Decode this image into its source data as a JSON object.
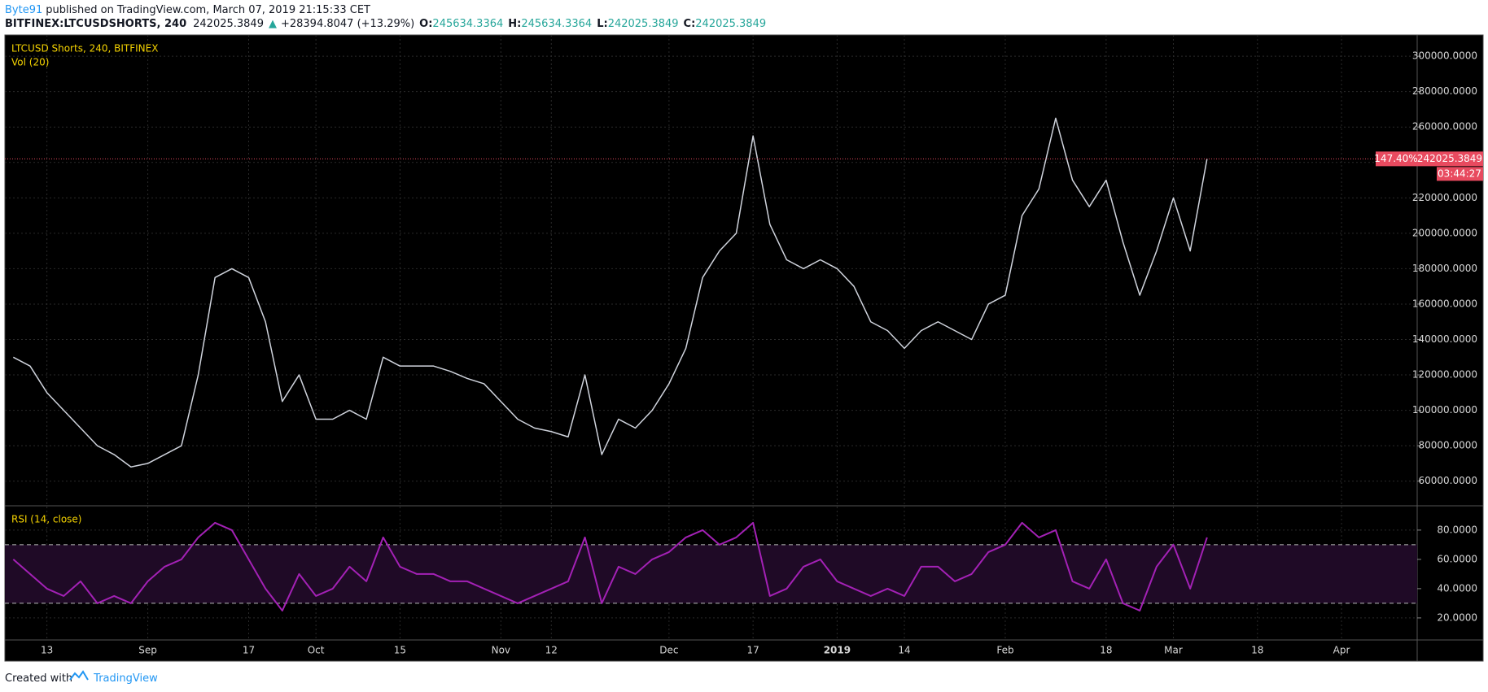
{
  "header": {
    "author": "Byte91",
    "published": "published on TradingView.com, March 07, 2019 21:15:33 CET",
    "symbol": "BITFINEX:LTCUSDSHORTS, 240",
    "last": 242025.3849,
    "arrow": "▲",
    "change": "+28394.8047 (+13.29%)",
    "ohlc": [
      {
        "label": "O:",
        "value": 245634.3364
      },
      {
        "label": "H:",
        "value": 245634.3364
      },
      {
        "label": "L:",
        "value": 242025.3849
      },
      {
        "label": "C:",
        "value": 242025.3849
      }
    ]
  },
  "footer": {
    "created": "Created with",
    "brand": "TradingView"
  },
  "chart_data": [
    {
      "type": "line",
      "title": "LTCUSD Shorts, 240, BITFINEX",
      "subtitle": "Vol (20)",
      "color": "#cfd3dc",
      "categories": [
        null,
        null,
        "13",
        null,
        null,
        null,
        null,
        null,
        "Sep",
        null,
        null,
        null,
        null,
        null,
        "17",
        null,
        null,
        null,
        "Oct",
        null,
        null,
        null,
        null,
        "15",
        null,
        null,
        null,
        null,
        null,
        "Nov",
        null,
        null,
        "12",
        null,
        null,
        null,
        null,
        null,
        null,
        "Dec",
        null,
        null,
        null,
        null,
        "17",
        null,
        null,
        null,
        null,
        "2019",
        null,
        null,
        null,
        "14",
        null,
        null,
        null,
        null,
        null,
        "Feb",
        null,
        null,
        null,
        null,
        null,
        "18",
        null,
        null,
        null,
        "Mar",
        null,
        null,
        null,
        null,
        "18",
        null,
        null,
        null,
        null,
        "Apr",
        null,
        null,
        null,
        null
      ],
      "values": [
        130000,
        125000,
        110000,
        100000,
        90000,
        80000,
        75000,
        68000,
        70000,
        75000,
        80000,
        120000,
        175000,
        180000,
        175000,
        150000,
        105000,
        120000,
        95000,
        95000,
        100000,
        95000,
        130000,
        125000,
        125000,
        125000,
        122000,
        118000,
        115000,
        105000,
        95000,
        90000,
        88000,
        85000,
        120000,
        75000,
        95000,
        90000,
        100000,
        115000,
        135000,
        175000,
        190000,
        200000,
        255000,
        205000,
        185000,
        180000,
        185000,
        180000,
        170000,
        150000,
        145000,
        135000,
        145000,
        150000,
        145000,
        140000,
        160000,
        165000,
        210000,
        225000,
        265000,
        230000,
        215000,
        230000,
        195000,
        165000,
        190000,
        220000,
        190000,
        242025.3849,
        null,
        null,
        null,
        null,
        null,
        null,
        null,
        null,
        null,
        null,
        null,
        null
      ],
      "ylim": [
        47000,
        312000
      ],
      "yticks": [
        {
          "value": 60000,
          "label": "60000.0000"
        },
        {
          "value": 80000,
          "label": "80000.0000"
        },
        {
          "value": 100000,
          "label": "100000.0000"
        },
        {
          "value": 120000,
          "label": "120000.0000"
        },
        {
          "value": 140000,
          "label": "140000.0000"
        },
        {
          "value": 160000,
          "label": "160000.0000"
        },
        {
          "value": 180000,
          "label": "180000.0000"
        },
        {
          "value": 200000,
          "label": "200000.0000"
        },
        {
          "value": 220000,
          "label": "220000.0000"
        },
        {
          "value": 240000,
          "label": "240000.0000"
        },
        {
          "value": 260000,
          "label": "260000.0000"
        },
        {
          "value": 280000,
          "label": "280000.0000"
        },
        {
          "value": 300000,
          "label": "300000.0000"
        }
      ],
      "grid": true,
      "last_change": "147.40%",
      "countdown": "03:44:27",
      "last_color": "#e84a5f"
    },
    {
      "type": "line",
      "title": "RSI (14, close)",
      "color": "#a321b5",
      "values": [
        60,
        50,
        40,
        35,
        45,
        30,
        35,
        30,
        45,
        55,
        60,
        75,
        85,
        80,
        60,
        40,
        25,
        50,
        35,
        40,
        55,
        45,
        75,
        55,
        50,
        50,
        45,
        45,
        40,
        35,
        30,
        35,
        40,
        45,
        75,
        30,
        55,
        50,
        60,
        65,
        75,
        80,
        70,
        75,
        85,
        35,
        40,
        55,
        60,
        45,
        40,
        35,
        40,
        35,
        55,
        55,
        45,
        50,
        65,
        70,
        85,
        75,
        80,
        45,
        40,
        60,
        30,
        25,
        55,
        70,
        40,
        75,
        null,
        null,
        null,
        null,
        null,
        null,
        null,
        null,
        null,
        null,
        null,
        null
      ],
      "ylim": [
        5.5,
        95.5
      ],
      "yticks": [
        {
          "value": 20,
          "label": "20.0000"
        },
        {
          "value": 40,
          "label": "40.0000"
        },
        {
          "value": 60,
          "label": "60.0000"
        },
        {
          "value": 80,
          "label": "80.0000"
        }
      ],
      "band": [
        30,
        70
      ],
      "band_color": "#1f0a26",
      "grid": true
    }
  ]
}
